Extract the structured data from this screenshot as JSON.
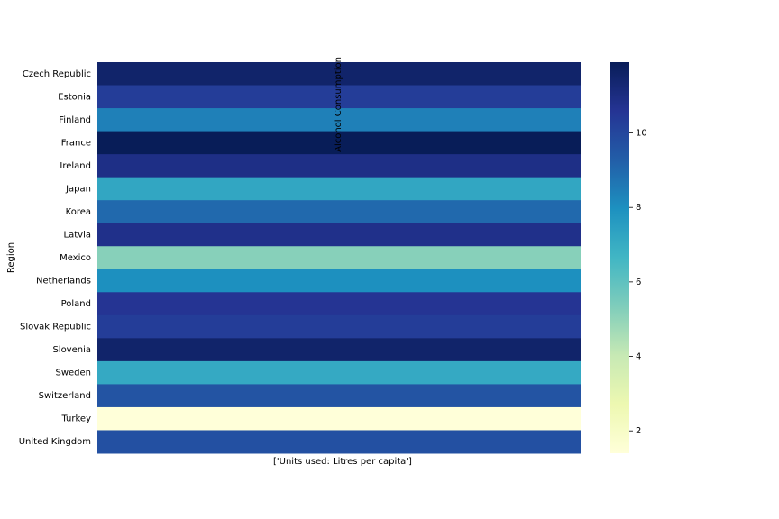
{
  "chart_data": {
    "type": "heatmap",
    "x_categories": [
      "Alcohol Consumption"
    ],
    "xlabel": "['Units used: Litres per capita']",
    "ylabel": "Region",
    "categories": [
      "Czech Republic",
      "Estonia",
      "Finland",
      "France",
      "Ireland",
      "Japan",
      "Korea",
      "Latvia",
      "Mexico",
      "Netherlands",
      "Poland",
      "Slovak Republic",
      "Slovenia",
      "Sweden",
      "Switzerland",
      "Turkey",
      "United Kingdom"
    ],
    "values": [
      11.5,
      10.3,
      8.4,
      11.9,
      10.9,
      7.2,
      9.0,
      10.8,
      5.2,
      8.0,
      10.6,
      10.3,
      11.5,
      7.1,
      9.6,
      1.4,
      9.7
    ],
    "colormap": "YlGnBu",
    "clim": [
      1.4,
      11.9
    ],
    "cticks": [
      2,
      4,
      6,
      8,
      10
    ]
  }
}
